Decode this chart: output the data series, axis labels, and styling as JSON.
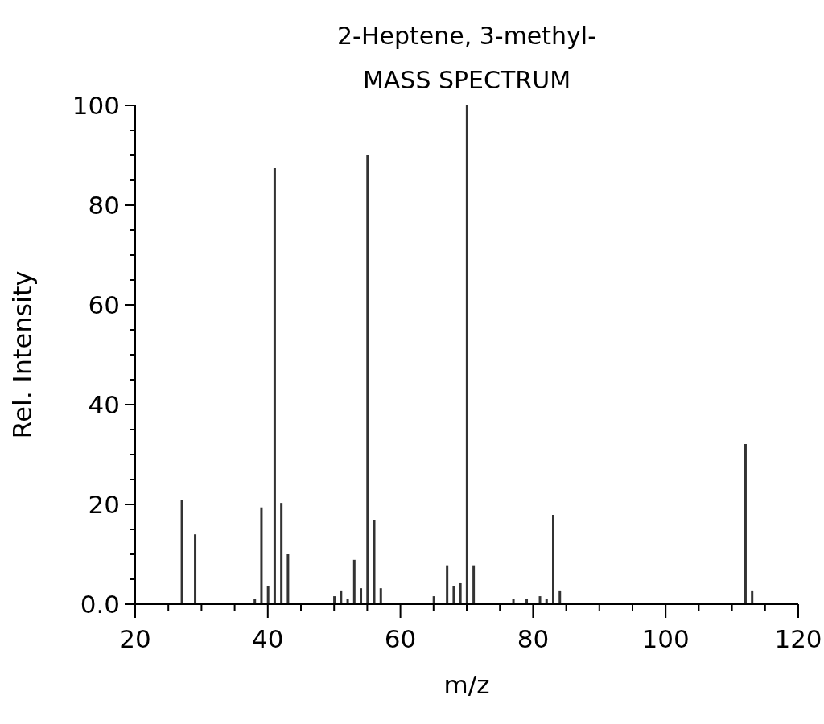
{
  "chart_data": {
    "type": "bar",
    "title": "2-Heptene, 3-methyl-",
    "subtitle": "MASS SPECTRUM",
    "xlabel": "m/z",
    "ylabel": "Rel. Intensity",
    "x": [
      27,
      29,
      38,
      39,
      40,
      41,
      42,
      43,
      50,
      51,
      52,
      53,
      54,
      55,
      56,
      57,
      65,
      67,
      68,
      69,
      70,
      71,
      77,
      79,
      81,
      82,
      83,
      84,
      112,
      113
    ],
    "values": [
      20.9,
      14.0,
      1.0,
      19.4,
      3.7,
      87.4,
      20.3,
      10.0,
      1.6,
      2.6,
      1.0,
      8.9,
      3.2,
      90.0,
      16.8,
      3.2,
      1.6,
      7.8,
      3.7,
      4.2,
      100,
      7.8,
      1.0,
      1.0,
      1.6,
      1.0,
      17.9,
      2.6,
      32.1,
      2.6
    ],
    "color": "#333333",
    "xlim": [
      20,
      120
    ],
    "xticks": [
      20,
      {
        "value": 25,
        "label": null
      },
      {
        "value": 30,
        "label": null
      },
      {
        "value": 35,
        "label": null
      },
      40,
      {
        "value": 45,
        "label": null
      },
      {
        "value": 50,
        "label": null
      },
      {
        "value": 55,
        "label": null
      },
      60,
      {
        "value": 65,
        "label": null
      },
      {
        "value": 70,
        "label": null
      },
      {
        "value": 75,
        "label": null
      },
      80,
      {
        "value": 85,
        "label": null
      },
      {
        "value": 90,
        "label": null
      },
      {
        "value": 95,
        "label": null
      },
      100,
      {
        "value": 105,
        "label": null
      },
      {
        "value": 110,
        "label": null
      },
      {
        "value": 115,
        "label": null
      },
      120
    ],
    "ylim": [
      0,
      100
    ],
    "yticks": [
      {
        "value": 0,
        "label": "0.0"
      },
      {
        "value": 5,
        "label": null
      },
      {
        "value": 10,
        "label": null
      },
      {
        "value": 15,
        "label": null
      },
      20,
      {
        "value": 25,
        "label": null
      },
      {
        "value": 30,
        "label": null
      },
      {
        "value": 35,
        "label": null
      },
      40,
      {
        "value": 45,
        "label": null
      },
      {
        "value": 50,
        "label": null
      },
      {
        "value": 55,
        "label": null
      },
      60,
      {
        "value": 65,
        "label": null
      },
      {
        "value": 70,
        "label": null
      },
      {
        "value": 75,
        "label": null
      },
      80,
      {
        "value": 85,
        "label": null
      },
      {
        "value": 90,
        "label": null
      },
      {
        "value": 95,
        "label": null
      },
      100
    ]
  }
}
